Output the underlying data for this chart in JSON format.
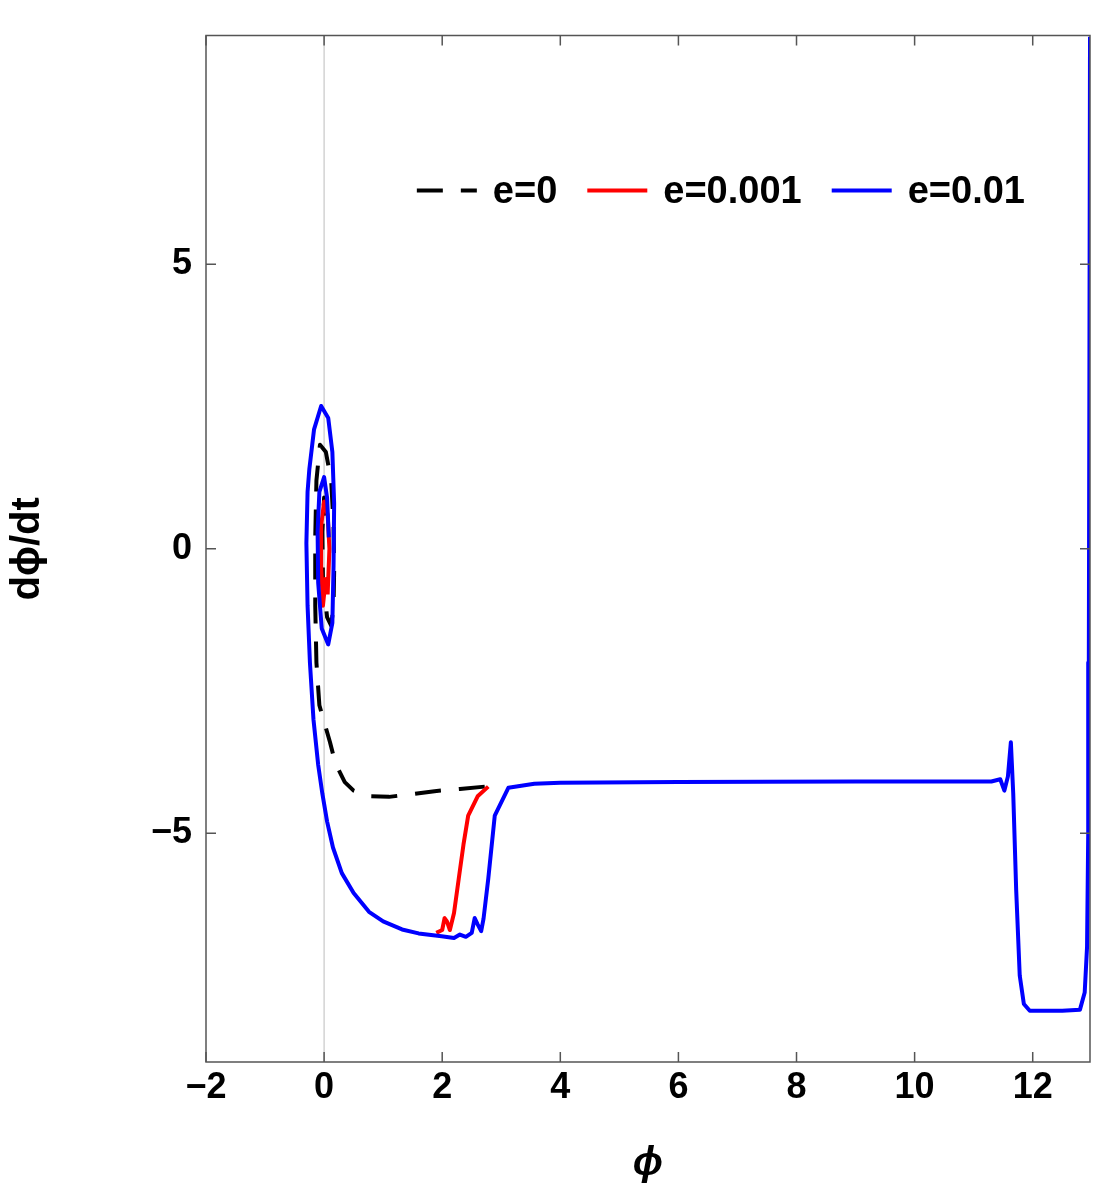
{
  "chart_data": {
    "type": "line",
    "xlabel": "ϕ",
    "ylabel": "dϕ/dt",
    "xlim": [
      -2,
      12.97
    ],
    "ylim": [
      -9.02,
      9.02
    ],
    "xticks": [
      {
        "value": -2,
        "label": "−2"
      },
      0,
      2,
      4,
      6,
      8,
      10,
      12
    ],
    "yticks": [
      {
        "value": -5,
        "label": "−5"
      },
      0,
      5
    ],
    "legend": "top right",
    "marker": "none",
    "ref_lines": [
      {
        "axis": "x",
        "value": 0,
        "color": "#c8c8c8"
      }
    ],
    "series": [
      {
        "name": "e=0",
        "color": "#000000",
        "line_style": "dashed",
        "x": [
          2.72,
          2.3,
          1.87,
          1.5,
          1.1,
          0.76,
          0.5,
          0.35,
          0.19,
          0.1,
          0.0,
          -0.08,
          -0.13,
          -0.15,
          -0.15,
          -0.13,
          -0.07,
          0.03,
          0.12,
          0.16,
          0.17,
          0.16,
          0.12,
          0.05,
          -0.02,
          -0.03,
          0.0,
          0.04
        ],
        "values": [
          -4.18,
          -4.22,
          -4.26,
          -4.31,
          -4.36,
          -4.35,
          -4.25,
          -4.1,
          -3.77,
          -3.4,
          -3.04,
          -2.75,
          -2.0,
          -1.0,
          0.2,
          1.2,
          1.83,
          1.7,
          1.2,
          0.4,
          -0.4,
          -1.0,
          -1.35,
          -1.2,
          -0.5,
          0.3,
          0.9,
          0.5
        ]
      },
      {
        "name": "e=0.001",
        "color": "#ff0000",
        "line_style": "solid",
        "x": [
          2.78,
          2.6,
          2.44,
          2.36,
          2.28,
          2.2,
          2.13,
          2.08,
          2.04,
          2.0,
          1.9,
          1.0,
          0.06,
          0.09,
          0.06,
          0.0,
          -0.05,
          -0.05,
          -0.02,
          0.03
        ],
        "values": [
          -4.18,
          -4.35,
          -4.69,
          -5.2,
          -5.8,
          -6.4,
          -6.7,
          -6.55,
          -6.49,
          -6.7,
          -6.75,
          null,
          -0.8,
          0.0,
          0.6,
          0.83,
          0.4,
          -0.3,
          -1.0,
          -0.5
        ]
      },
      {
        "name": "e=0.01",
        "color": "#0000ff",
        "line_style": "solid",
        "x": [
          12.97,
          12.96,
          12.95,
          12.94,
          12.92,
          12.88,
          12.8,
          12.5,
          11.95,
          11.85,
          11.78,
          11.72,
          11.67,
          11.63,
          11.58,
          11.52,
          11.45,
          11.3,
          9,
          6,
          4,
          3.56,
          3.12,
          2.89,
          2.78,
          2.7,
          2.66,
          2.6,
          2.55,
          2.5,
          2.4,
          2.3,
          2.2,
          1.99,
          1.6,
          1.32,
          1.0,
          0.76,
          0.5,
          0.3,
          0.15,
          0.05,
          -0.03,
          -0.1,
          -0.18,
          -0.24,
          -0.28,
          -0.3,
          -0.28,
          -0.25,
          -0.17,
          -0.05,
          0.07,
          0.14,
          0.17,
          0.16,
          0.14,
          0.07,
          -0.04,
          -0.1,
          -0.11,
          -0.08,
          0.0,
          0.05,
          0.08
        ],
        "values": [
          9,
          3,
          -2,
          -5,
          -7,
          -7.8,
          -8.1,
          -8.12,
          -8.12,
          -8,
          -7.5,
          -6,
          -4.3,
          -3.4,
          -4.0,
          -4.25,
          -4.05,
          -4.09,
          -4.09,
          -4.1,
          -4.11,
          -4.13,
          -4.2,
          -4.69,
          -5.8,
          -6.5,
          -6.72,
          -6.6,
          -6.49,
          -6.75,
          -6.82,
          -6.78,
          -6.84,
          -6.81,
          -6.76,
          -6.69,
          -6.55,
          -6.38,
          -6.05,
          -5.7,
          -5.25,
          -4.79,
          -4.3,
          -3.8,
          -3.0,
          -2.0,
          -1.0,
          0.1,
          1.0,
          1.4,
          2.1,
          2.51,
          2.3,
          1.7,
          0.8,
          -0.3,
          -1.3,
          -1.68,
          -1.4,
          -0.6,
          0.3,
          1.0,
          1.26,
          0.9,
          0.2
        ]
      }
    ]
  }
}
